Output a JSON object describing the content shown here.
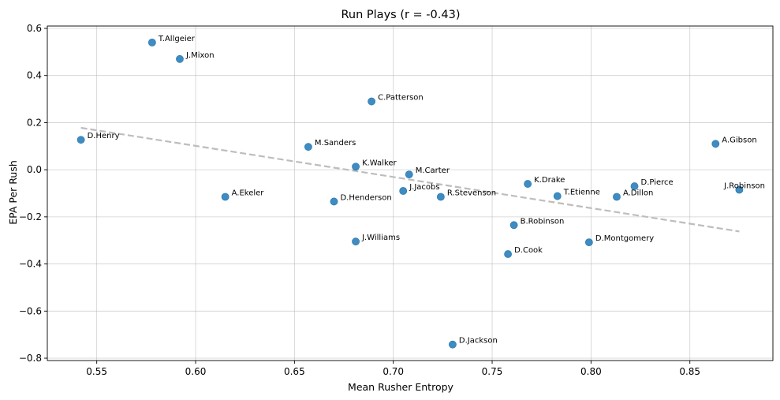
{
  "chart_data": {
    "type": "scatter",
    "title": "Run Plays (r = -0.43)",
    "xlabel": "Mean Rusher Entropy",
    "ylabel": "EPA Per Rush",
    "xlim": [
      0.525,
      0.892
    ],
    "ylim": [
      -0.81,
      0.61
    ],
    "xticks": [
      0.55,
      0.6,
      0.65,
      0.7,
      0.75,
      0.8,
      0.85
    ],
    "xtick_labels": [
      "0.55",
      "0.60",
      "0.65",
      "0.70",
      "0.75",
      "0.80",
      "0.85"
    ],
    "yticks": [
      -0.8,
      -0.6,
      -0.4,
      -0.2,
      0.0,
      0.2,
      0.4,
      0.6
    ],
    "ytick_labels": [
      "−0.8",
      "−0.6",
      "−0.4",
      "−0.2",
      "0.0",
      "0.2",
      "0.4",
      "0.6"
    ],
    "grid": true,
    "point_color": "#1f77b4",
    "trend_color": "#bdbdbd",
    "points": [
      {
        "label": "T.Allgeier",
        "x": 0.578,
        "y": 0.54
      },
      {
        "label": "J.Mixon",
        "x": 0.592,
        "y": 0.47
      },
      {
        "label": "C.Patterson",
        "x": 0.689,
        "y": 0.29
      },
      {
        "label": "D.Henry",
        "x": 0.542,
        "y": 0.127
      },
      {
        "label": "M.Sanders",
        "x": 0.657,
        "y": 0.097
      },
      {
        "label": "K.Walker",
        "x": 0.681,
        "y": 0.013
      },
      {
        "label": "M.Carter",
        "x": 0.708,
        "y": -0.02
      },
      {
        "label": "A.Gibson",
        "x": 0.863,
        "y": 0.11
      },
      {
        "label": "K.Drake",
        "x": 0.768,
        "y": -0.06
      },
      {
        "label": "D.Pierce",
        "x": 0.822,
        "y": -0.07
      },
      {
        "label": "J.Robinson",
        "x": 0.875,
        "y": -0.085
      },
      {
        "label": "A.Ekeler",
        "x": 0.615,
        "y": -0.115
      },
      {
        "label": "J.Jacobs",
        "x": 0.705,
        "y": -0.09
      },
      {
        "label": "R.Stevenson",
        "x": 0.724,
        "y": -0.115
      },
      {
        "label": "T.Etienne",
        "x": 0.783,
        "y": -0.112
      },
      {
        "label": "A.Dillon",
        "x": 0.813,
        "y": -0.115
      },
      {
        "label": "D.Henderson",
        "x": 0.67,
        "y": -0.135
      },
      {
        "label": "B.Robinson",
        "x": 0.761,
        "y": -0.235
      },
      {
        "label": "J.Williams",
        "x": 0.681,
        "y": -0.305
      },
      {
        "label": "D.Montgomery",
        "x": 0.799,
        "y": -0.308
      },
      {
        "label": "D.Cook",
        "x": 0.758,
        "y": -0.358
      },
      {
        "label": "D.Jackson",
        "x": 0.73,
        "y": -0.742
      }
    ],
    "trend_line": {
      "x": [
        0.542,
        0.875
      ],
      "y": [
        0.178,
        -0.262
      ]
    }
  }
}
